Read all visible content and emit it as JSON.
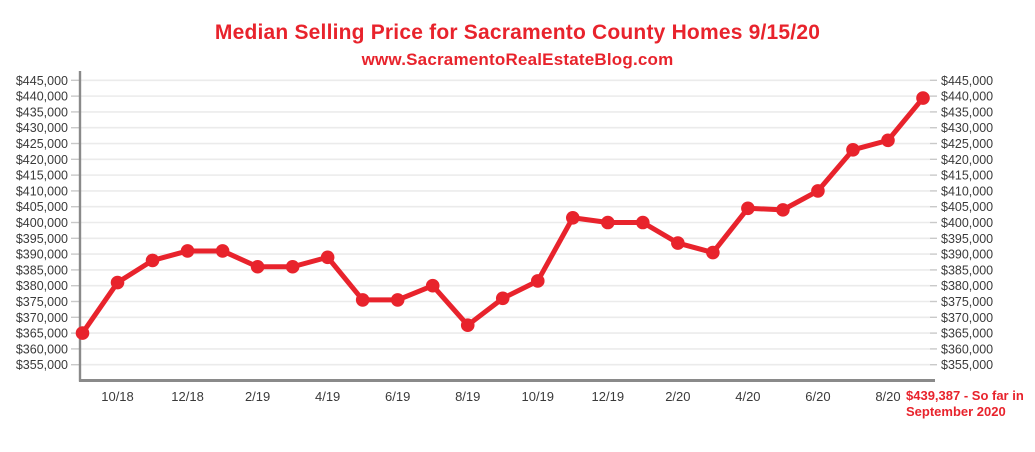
{
  "header": {
    "title": "Median Selling Price for Sacramento County Homes 9/15/20",
    "subtitle": "www.SacramentoRealEstateBlog.com"
  },
  "chart_data": {
    "type": "line",
    "title": "Median Selling Price for Sacramento County Homes 9/15/20",
    "subtitle": "www.SacramentoRealEstateBlog.com",
    "series_name": "Median Selling Price",
    "x": [
      "9/18",
      "10/18",
      "11/18",
      "12/18",
      "1/19",
      "2/19",
      "3/19",
      "4/19",
      "5/19",
      "6/19",
      "7/19",
      "8/19",
      "9/19",
      "10/19",
      "11/19",
      "12/19",
      "1/20",
      "2/20",
      "3/20",
      "4/20",
      "5/20",
      "6/20",
      "7/20",
      "8/20",
      "9/20"
    ],
    "values": [
      365000,
      381000,
      388000,
      391000,
      391000,
      386000,
      386000,
      389000,
      375500,
      375500,
      380000,
      367500,
      376000,
      381500,
      401500,
      400000,
      400000,
      393500,
      390500,
      404500,
      404000,
      410000,
      423000,
      426000,
      439387
    ],
    "x_tick_labels": [
      "10/18",
      "12/18",
      "2/19",
      "4/19",
      "6/19",
      "8/19",
      "10/19",
      "12/19",
      "2/20",
      "4/20",
      "6/20",
      "8/20"
    ],
    "y_tick_labels": [
      "$445,000",
      "$440,000",
      "$435,000",
      "$430,000",
      "$425,000",
      "$420,000",
      "$415,000",
      "$410,000",
      "$405,000",
      "$400,000",
      "$395,000",
      "$390,000",
      "$385,000",
      "$380,000",
      "$375,000",
      "$370,000",
      "$365,000",
      "$360,000",
      "$355,000"
    ],
    "ylim": [
      350000,
      447000
    ],
    "grid": true,
    "legend": "none",
    "annotation": "$439,387 - So far in September 2020",
    "annotation_lines": [
      "$439,387 - So far in",
      "September 2020"
    ],
    "colors": {
      "line": "#e8232c",
      "title": "#e8232c",
      "annotation": "#e8232c",
      "axis": "#8a8a8a",
      "tick": "#c9c9c9",
      "grid": "#ebebeb",
      "label": "#3a3a3a"
    }
  }
}
